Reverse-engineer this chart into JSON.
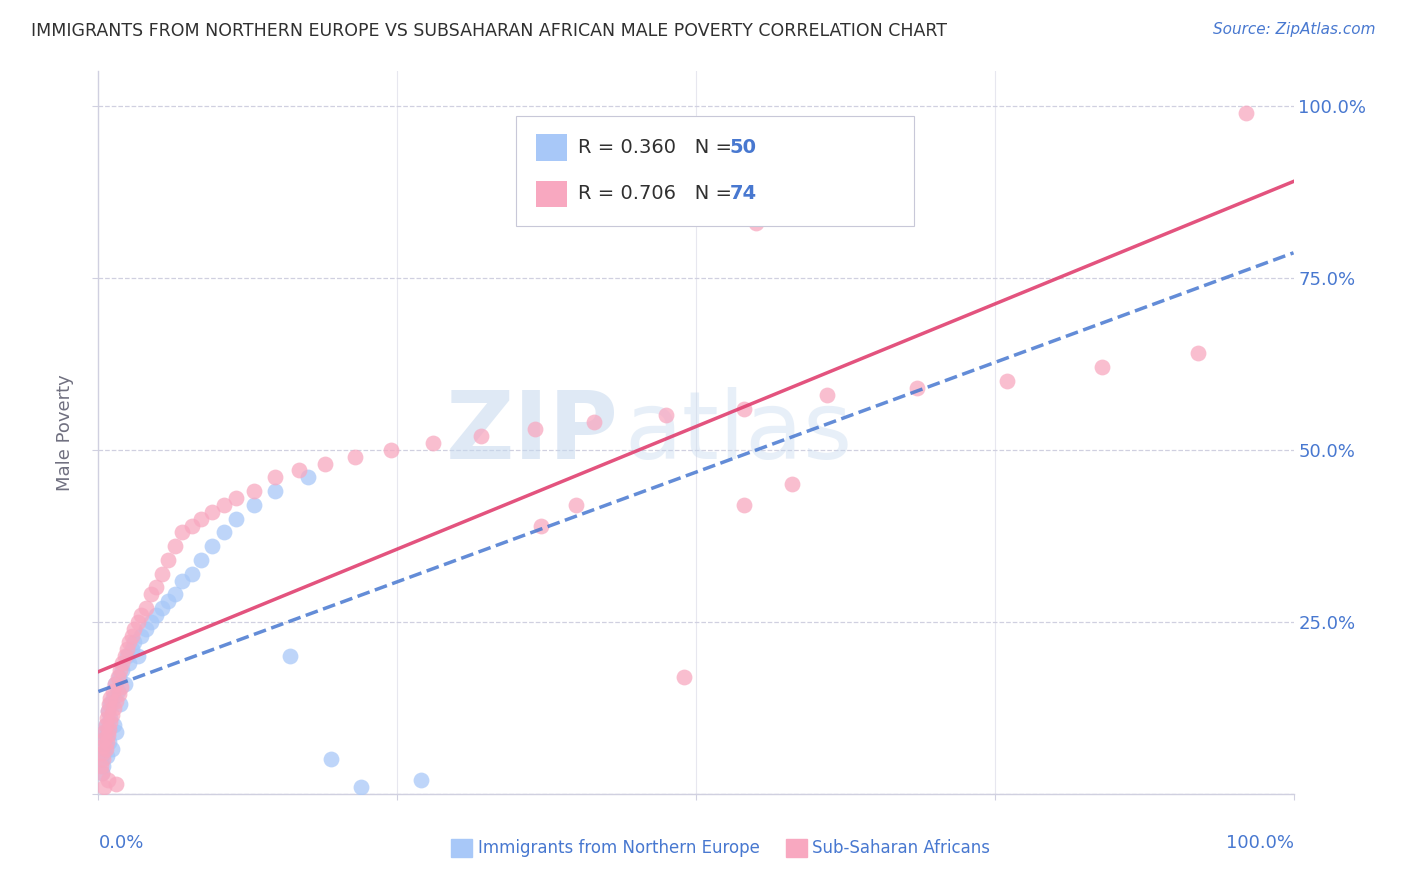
{
  "title": "IMMIGRANTS FROM NORTHERN EUROPE VS SUBSAHARAN AFRICAN MALE POVERTY CORRELATION CHART",
  "source": "Source: ZipAtlas.com",
  "ylabel": "Male Poverty",
  "watermark_zip": "ZIP",
  "watermark_atlas": "atlas",
  "legend_blue_r": "R = 0.360",
  "legend_blue_n": "N = 50",
  "legend_pink_r": "R = 0.706",
  "legend_pink_n": "N = 74",
  "blue_color": "#A8C8F8",
  "pink_color": "#F8A8C0",
  "blue_line_color": "#4878D0",
  "pink_line_color": "#E04070",
  "background_color": "#FFFFFF",
  "grid_color": "#D0D0E0",
  "title_color": "#303030",
  "axis_label_color": "#4878D0",
  "ylabel_color": "#707080",
  "legend_r_color": "#303030",
  "legend_n_color": "#4878D0",
  "blue_x": [
    0.002,
    0.003,
    0.004,
    0.004,
    0.005,
    0.005,
    0.006,
    0.006,
    0.007,
    0.007,
    0.008,
    0.008,
    0.009,
    0.01,
    0.01,
    0.011,
    0.012,
    0.013,
    0.014,
    0.015,
    0.016,
    0.017,
    0.018,
    0.02,
    0.022,
    0.024,
    0.026,
    0.028,
    0.03,
    0.033,
    0.036,
    0.04,
    0.044,
    0.048,
    0.053,
    0.058,
    0.064,
    0.07,
    0.078,
    0.086,
    0.095,
    0.105,
    0.115,
    0.13,
    0.148,
    0.16,
    0.175,
    0.195,
    0.22,
    0.27
  ],
  "blue_y": [
    0.05,
    0.03,
    0.08,
    0.04,
    0.06,
    0.09,
    0.07,
    0.1,
    0.055,
    0.085,
    0.095,
    0.12,
    0.075,
    0.11,
    0.13,
    0.065,
    0.14,
    0.1,
    0.16,
    0.09,
    0.15,
    0.17,
    0.13,
    0.18,
    0.16,
    0.2,
    0.19,
    0.21,
    0.22,
    0.2,
    0.23,
    0.24,
    0.25,
    0.26,
    0.27,
    0.28,
    0.29,
    0.31,
    0.32,
    0.34,
    0.36,
    0.38,
    0.4,
    0.42,
    0.44,
    0.2,
    0.46,
    0.05,
    0.01,
    0.02
  ],
  "pink_x": [
    0.002,
    0.003,
    0.003,
    0.004,
    0.004,
    0.005,
    0.005,
    0.006,
    0.006,
    0.007,
    0.007,
    0.008,
    0.008,
    0.009,
    0.009,
    0.01,
    0.01,
    0.011,
    0.012,
    0.013,
    0.014,
    0.015,
    0.016,
    0.017,
    0.018,
    0.019,
    0.02,
    0.022,
    0.024,
    0.026,
    0.028,
    0.03,
    0.033,
    0.036,
    0.04,
    0.044,
    0.048,
    0.053,
    0.058,
    0.064,
    0.07,
    0.078,
    0.086,
    0.095,
    0.105,
    0.115,
    0.13,
    0.148,
    0.168,
    0.19,
    0.215,
    0.245,
    0.28,
    0.32,
    0.365,
    0.415,
    0.475,
    0.54,
    0.61,
    0.685,
    0.76,
    0.84,
    0.92,
    0.55,
    0.63,
    0.54,
    0.58,
    0.37,
    0.4,
    0.005,
    0.008,
    0.015,
    0.96,
    0.49
  ],
  "pink_y": [
    0.04,
    0.06,
    0.03,
    0.07,
    0.05,
    0.08,
    0.09,
    0.065,
    0.1,
    0.075,
    0.11,
    0.085,
    0.12,
    0.095,
    0.13,
    0.105,
    0.14,
    0.115,
    0.15,
    0.125,
    0.16,
    0.135,
    0.17,
    0.145,
    0.18,
    0.155,
    0.19,
    0.2,
    0.21,
    0.22,
    0.23,
    0.24,
    0.25,
    0.26,
    0.27,
    0.29,
    0.3,
    0.32,
    0.34,
    0.36,
    0.38,
    0.39,
    0.4,
    0.41,
    0.42,
    0.43,
    0.44,
    0.46,
    0.47,
    0.48,
    0.49,
    0.5,
    0.51,
    0.52,
    0.53,
    0.54,
    0.55,
    0.56,
    0.58,
    0.59,
    0.6,
    0.62,
    0.64,
    0.83,
    0.84,
    0.42,
    0.45,
    0.39,
    0.42,
    0.01,
    0.02,
    0.015,
    0.99,
    0.17
  ],
  "xlim": [
    0.0,
    1.0
  ],
  "ylim": [
    0.0,
    1.05
  ],
  "blue_trend_x": [
    0.0,
    1.0
  ],
  "blue_trend_y": [
    0.12,
    0.58
  ],
  "pink_trend_x": [
    0.0,
    1.0
  ],
  "pink_trend_y": [
    0.02,
    0.76
  ]
}
